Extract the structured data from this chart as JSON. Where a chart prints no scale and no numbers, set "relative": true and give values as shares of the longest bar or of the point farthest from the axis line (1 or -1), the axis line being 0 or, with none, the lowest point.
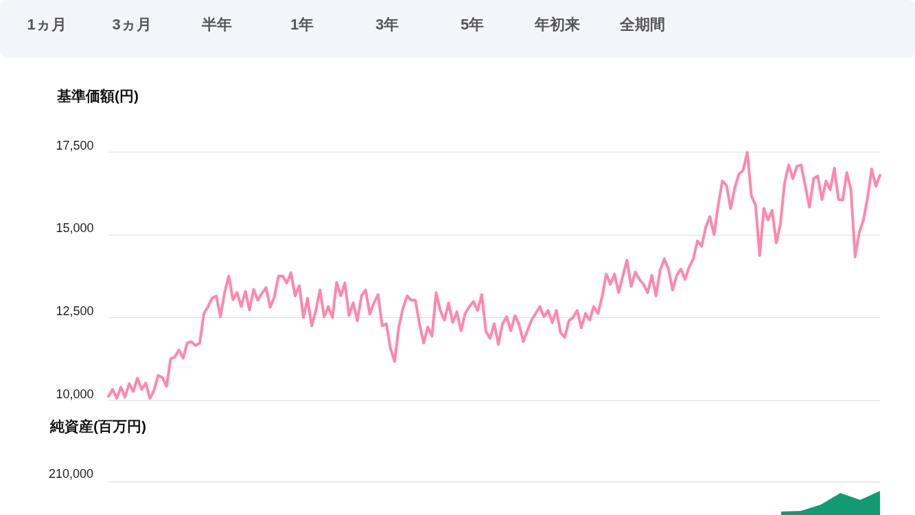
{
  "chart_data": [
    {
      "type": "line",
      "title": "基準価額(円)",
      "annotations": [
        "1ヵ月",
        "3ヵ月",
        "半年",
        "1年",
        "3年",
        "5年",
        "年初来",
        "全期間"
      ],
      "categories": [
        null,
        null,
        null,
        null,
        null,
        null,
        null,
        null,
        null,
        null,
        null,
        null,
        null,
        null,
        null,
        null,
        null,
        null,
        null,
        null,
        null,
        null,
        null,
        null,
        null,
        null,
        null,
        null,
        null,
        null,
        null,
        null,
        null,
        null,
        null,
        null,
        null,
        null,
        null,
        null,
        null,
        null,
        null,
        null,
        null,
        null,
        null,
        null,
        null,
        null,
        null,
        null,
        null,
        null,
        null,
        null,
        null,
        null,
        null,
        null,
        null,
        null,
        null,
        null,
        null,
        null,
        null,
        null,
        null,
        null,
        null,
        null,
        null,
        null,
        null,
        null,
        null,
        null,
        null,
        null,
        null,
        null,
        null,
        null,
        null,
        null,
        null,
        null,
        null,
        null,
        null,
        null,
        null,
        null,
        null,
        null,
        null,
        null,
        null,
        null,
        null,
        null,
        null,
        null,
        null,
        null,
        null,
        null,
        null,
        null,
        null,
        null,
        null,
        null,
        null,
        null,
        null,
        null,
        null,
        null,
        null,
        null,
        null,
        null,
        null,
        null,
        null,
        null,
        null,
        null,
        null,
        null,
        null,
        null,
        null,
        null,
        null,
        null,
        null,
        null,
        null,
        null,
        null,
        null,
        null,
        null,
        null,
        null,
        null,
        null,
        null,
        null,
        null,
        null,
        null,
        null,
        null,
        null,
        null,
        null,
        null,
        null,
        null,
        null,
        null,
        null,
        null,
        null,
        null,
        null,
        null,
        null,
        null,
        null,
        null,
        null,
        null,
        null,
        null,
        null,
        null,
        null,
        null,
        null,
        null,
        null,
        null
      ],
      "series": [
        {
          "color": "#ff88aa",
          "values": [
            10120,
            10330,
            10060,
            10400,
            10100,
            10500,
            10270,
            10670,
            10330,
            10520,
            10060,
            10310,
            10750,
            10690,
            10420,
            11250,
            11310,
            11520,
            11270,
            11730,
            11770,
            11650,
            11730,
            12620,
            12830,
            13080,
            13150,
            12520,
            13250,
            13750,
            13040,
            13250,
            12830,
            13290,
            12730,
            13350,
            13020,
            13230,
            13400,
            12810,
            13120,
            13750,
            13750,
            13540,
            13850,
            13150,
            13460,
            12500,
            13080,
            12250,
            12710,
            13330,
            12520,
            12830,
            12500,
            13560,
            13150,
            13540,
            12560,
            12940,
            12400,
            13150,
            13330,
            12600,
            12940,
            13190,
            12250,
            12310,
            11560,
            11170,
            12210,
            12770,
            13150,
            13020,
            13020,
            12290,
            11730,
            12210,
            11940,
            13250,
            12710,
            12420,
            12940,
            12350,
            12670,
            12100,
            12620,
            12830,
            12980,
            12710,
            13190,
            12080,
            11870,
            12310,
            11690,
            12310,
            12520,
            12100,
            12560,
            12290,
            11770,
            12100,
            12420,
            12620,
            12830,
            12520,
            12710,
            12350,
            12710,
            12040,
            11900,
            12400,
            12500,
            12710,
            12190,
            12620,
            12420,
            12830,
            12620,
            13120,
            13810,
            13500,
            13810,
            13250,
            13750,
            14230,
            13440,
            13870,
            13650,
            13500,
            13250,
            13770,
            13150,
            13920,
            14270,
            13960,
            13330,
            13770,
            13960,
            13650,
            14020,
            14270,
            14810,
            14650,
            15230,
            15540,
            15000,
            15890,
            16620,
            16480,
            15790,
            16420,
            16830,
            16940,
            17480,
            16170,
            15890,
            14370,
            15790,
            15440,
            15730,
            14750,
            15330,
            16560,
            17100,
            16690,
            17060,
            17100,
            16460,
            15830,
            16690,
            16770,
            16060,
            16620,
            16350,
            17000,
            16060,
            16040,
            16870,
            16350,
            14330,
            15060,
            15440,
            16100,
            16980,
            16460,
            16790
          ]
        }
      ],
      "ylim": [
        10000,
        17500
      ],
      "yticks": [
        {
          "value": 10000,
          "label": "10,000"
        },
        {
          "value": 12500,
          "label": "12,500"
        },
        {
          "value": 15000,
          "label": "15,000"
        },
        {
          "value": 17500,
          "label": "17,500"
        }
      ],
      "grid": "y",
      "marker": "none",
      "line_style": "solid"
    },
    {
      "type": "area",
      "title": "純資産(百万円)",
      "relative": true,
      "annotations": [
        "210,000"
      ],
      "categories": [
        null,
        null,
        null,
        null,
        null,
        null,
        null,
        null,
        null,
        null,
        null,
        null,
        null,
        null,
        null,
        null,
        null,
        null,
        null,
        null,
        null,
        null,
        null,
        null,
        null,
        null,
        null,
        null,
        null,
        null,
        null,
        null,
        null,
        null,
        null,
        null,
        null,
        null,
        null,
        null
      ],
      "series": [
        {
          "color": "#139a74",
          "values": [
            null,
            null,
            null,
            null,
            null,
            null,
            null,
            null,
            null,
            null,
            null,
            null,
            null,
            null,
            null,
            null,
            null,
            null,
            null,
            null,
            null,
            null,
            null,
            null,
            null,
            null,
            null,
            null,
            null,
            null,
            null,
            null,
            null,
            null,
            0.14,
            0.17,
            0.43,
            0.91,
            0.63,
            1
          ]
        }
      ]
    }
  ]
}
